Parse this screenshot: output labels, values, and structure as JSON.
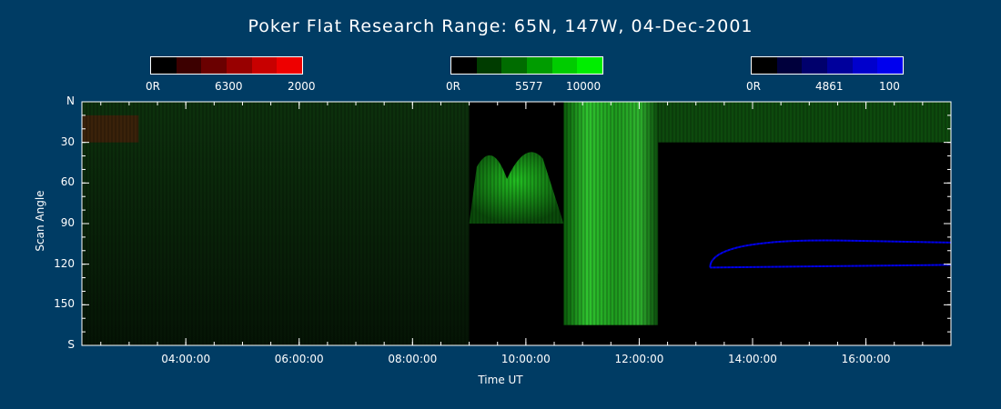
{
  "title": "Poker Flat Research Range: 65N, 147W, 04-Dec-2001",
  "colorbars": [
    {
      "name": "red",
      "min": "0R",
      "mid": "6300",
      "max": "2000",
      "colors": [
        "#000000",
        "#3c0000",
        "#6a0000",
        "#980000",
        "#c80000",
        "#ee0000"
      ]
    },
    {
      "name": "green",
      "min": "0R",
      "mid": "5577",
      "max": "10000",
      "colors": [
        "#000000",
        "#003c00",
        "#006c00",
        "#009c00",
        "#00cc00",
        "#00ee00"
      ]
    },
    {
      "name": "blue",
      "min": "0R",
      "mid": "4861",
      "max": "100",
      "colors": [
        "#000000",
        "#00003c",
        "#00006c",
        "#00009c",
        "#0000cc",
        "#0000ee"
      ]
    }
  ],
  "chart_data": {
    "type": "heatmap",
    "title": "Poker Flat Research Range: 65N, 147W, 04-Dec-2001",
    "xlabel": "Time UT",
    "ylabel": "Scan Angle",
    "x_ticks": [
      "04:00:00",
      "06:00:00",
      "08:00:00",
      "10:00:00",
      "12:00:00",
      "14:00:00",
      "16:00:00"
    ],
    "y_ticks": [
      "N",
      "30",
      "60",
      "90",
      "120",
      "150",
      "S"
    ],
    "xlim": [
      "02:10:00",
      "17:30:00"
    ],
    "ylim": [
      0,
      180
    ],
    "colors": {
      "red": "#ee0000",
      "green": "#00ee00",
      "blue": "#0000ee",
      "background": "#003c64"
    },
    "features": [
      {
        "channel": "5577 green",
        "start": "02:10:00",
        "end": "09:00:00",
        "scan_from": 0,
        "scan_to": 180,
        "level": "dim"
      },
      {
        "channel": "5577 green",
        "start": "09:00:00",
        "end": "10:40:00",
        "scan_from": 30,
        "scan_to": 90,
        "level": "moderate"
      },
      {
        "channel": "5577 green",
        "start": "10:40:00",
        "end": "12:20:00",
        "scan_from": 0,
        "scan_to": 165,
        "level": "bright"
      },
      {
        "channel": "5577 green",
        "start": "12:20:00",
        "end": "17:30:00",
        "scan_from": 0,
        "scan_to": 30,
        "level": "moderate"
      },
      {
        "channel": "4861 blue",
        "start": "13:15:00",
        "end": "17:30:00",
        "scan_from": 100,
        "scan_to": 130,
        "level": "weak arc"
      },
      {
        "channel": "6300 red",
        "start": "02:10:00",
        "end": "03:10:00",
        "scan_from": 10,
        "scan_to": 30,
        "level": "weak"
      },
      {
        "channel": "no data",
        "start": "12:20:00",
        "end": "17:30:00",
        "scan_from": 127,
        "scan_to": 180,
        "level": "gap"
      }
    ]
  }
}
